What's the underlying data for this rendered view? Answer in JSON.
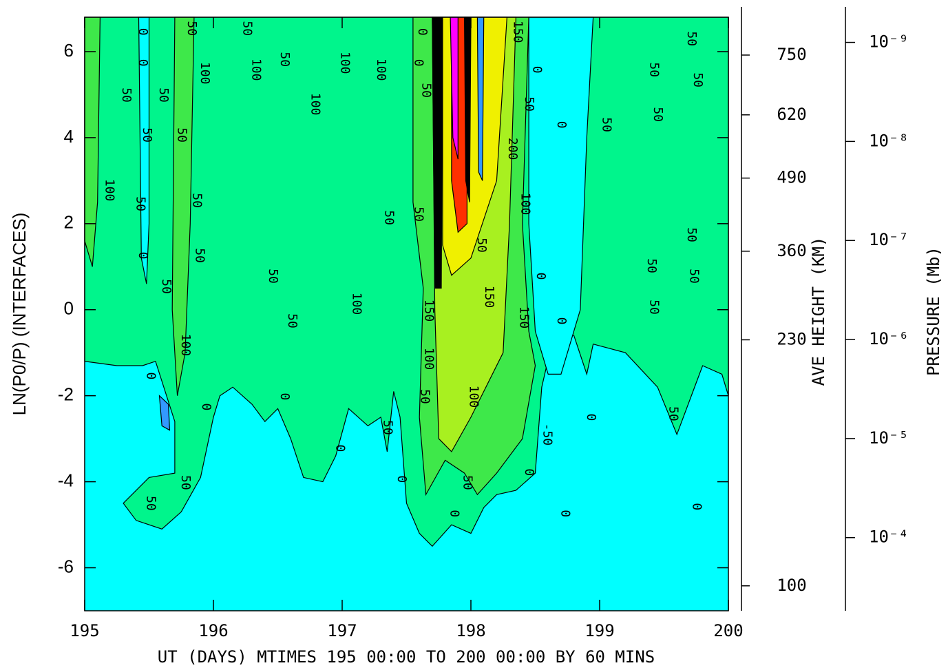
{
  "chart_data": {
    "type": "contour",
    "xlabel": "UT (DAYS) MTIMES 195 00:00 TO 200 00:00 BY   60 MINS",
    "ylabel": "LN(P0/P) (INTERFACES)",
    "xlim": [
      195,
      200
    ],
    "ylim": [
      -7,
      6.8
    ],
    "xticks": [
      195,
      196,
      197,
      198,
      199,
      200
    ],
    "yticks": [
      -6,
      -4,
      -2,
      0,
      2,
      4,
      6
    ],
    "height_axis": {
      "label": "AVE HEIGHT (KM)",
      "ticks": [
        100,
        230,
        360,
        490,
        620,
        750
      ],
      "tick_y": [
        -6.42,
        -0.7,
        1.36,
        3.06,
        4.53,
        5.92
      ]
    },
    "pressure_axis": {
      "label": "PRESSURE (Mb)",
      "log": true,
      "y2lim": [
        0.000548,
        5.57e-10
      ],
      "y2ticks": [
        {
          "value": 1e-09,
          "label": "10⁻⁹"
        },
        {
          "value": 1e-08,
          "label": "10⁻⁸"
        },
        {
          "value": 1e-07,
          "label": "10⁻⁷"
        },
        {
          "value": 1e-06,
          "label": "10⁻⁶"
        },
        {
          "value": 1e-05,
          "label": "10⁻⁵"
        },
        {
          "value": 0.0001,
          "label": "10⁻⁴"
        }
      ]
    },
    "regions": [
      {
        "level": 0,
        "color": "#00ffff",
        "points": [
          [
            195,
            6.8
          ],
          [
            200,
            6.8
          ],
          [
            200,
            -7
          ],
          [
            195,
            -7
          ]
        ]
      },
      {
        "level": 50,
        "color": "#00f58c",
        "points": [
          [
            195,
            6.8
          ],
          [
            200,
            6.8
          ],
          [
            200,
            -2
          ],
          [
            199.95,
            -1.5
          ],
          [
            199.8,
            -1.3
          ],
          [
            199.6,
            -2.9
          ],
          [
            199.45,
            -1.8
          ],
          [
            199.2,
            -1
          ],
          [
            198.95,
            -0.8
          ],
          [
            198.9,
            -1.5
          ],
          [
            198.8,
            -0.6
          ],
          [
            198.65,
            -0.5
          ],
          [
            198.55,
            -1.8
          ],
          [
            198.5,
            -3.8
          ],
          [
            198.35,
            -4.2
          ],
          [
            198.2,
            -4.3
          ],
          [
            198.1,
            -4.6
          ],
          [
            198.0,
            -5.2
          ],
          [
            197.85,
            -5.0
          ],
          [
            197.7,
            -5.5
          ],
          [
            197.6,
            -5.2
          ],
          [
            197.5,
            -4.5
          ],
          [
            197.45,
            -2.5
          ],
          [
            197.4,
            -1.9
          ],
          [
            197.35,
            -3.3
          ],
          [
            197.3,
            -2.5
          ],
          [
            197.2,
            -2.7
          ],
          [
            197.05,
            -2.3
          ],
          [
            196.95,
            -3.4
          ],
          [
            196.85,
            -4.0
          ],
          [
            196.7,
            -3.9
          ],
          [
            196.6,
            -3.0
          ],
          [
            196.5,
            -2.3
          ],
          [
            196.4,
            -2.6
          ],
          [
            196.3,
            -2.2
          ],
          [
            196.15,
            -1.8
          ],
          [
            196.05,
            -2.0
          ],
          [
            196.0,
            -2.5
          ],
          [
            195.9,
            -3.9
          ],
          [
            195.75,
            -4.7
          ],
          [
            195.6,
            -5.1
          ],
          [
            195.4,
            -4.9
          ],
          [
            195.3,
            -4.5
          ],
          [
            195.5,
            -3.9
          ],
          [
            195.7,
            -3.8
          ],
          [
            195.7,
            -2.6
          ],
          [
            195.55,
            -1.2
          ],
          [
            195.45,
            -1.3
          ],
          [
            195.25,
            -1.3
          ],
          [
            195,
            -1.2
          ]
        ]
      },
      {
        "level": 0,
        "color": "#00ffff",
        "points": [
          [
            195.42,
            6.8
          ],
          [
            195.5,
            6.8
          ],
          [
            195.5,
            2
          ],
          [
            195.48,
            0.6
          ],
          [
            195.44,
            1.2
          ],
          [
            195.43,
            4
          ]
        ]
      },
      {
        "level": 0,
        "color": "#00ffff",
        "points": [
          [
            198.45,
            6.8
          ],
          [
            198.95,
            6.8
          ],
          [
            198.9,
            4
          ],
          [
            198.85,
            0
          ],
          [
            198.7,
            -1.5
          ],
          [
            198.6,
            -1.5
          ],
          [
            198.5,
            -0.5
          ],
          [
            198.45,
            2
          ]
        ]
      },
      {
        "level": 100,
        "color": "#3ee84a",
        "points": [
          [
            195,
            6.8
          ],
          [
            195.12,
            6.8
          ],
          [
            195.1,
            2.5
          ],
          [
            195.06,
            1
          ],
          [
            195,
            1.6
          ]
        ]
      },
      {
        "level": 100,
        "color": "#3ee84a",
        "points": [
          [
            195.7,
            6.8
          ],
          [
            195.85,
            6.8
          ],
          [
            195.82,
            2
          ],
          [
            195.78,
            -1
          ],
          [
            195.72,
            -2
          ],
          [
            195.68,
            0
          ]
        ]
      },
      {
        "level": 100,
        "color": "#3ee84a",
        "points": [
          [
            197.55,
            6.8
          ],
          [
            198.45,
            6.8
          ],
          [
            198.4,
            2
          ],
          [
            198.45,
            -0.5
          ],
          [
            198.5,
            -1.3
          ],
          [
            198.4,
            -3
          ],
          [
            198.2,
            -3.8
          ],
          [
            198.05,
            -4.3
          ],
          [
            197.95,
            -3.8
          ],
          [
            197.8,
            -3.5
          ],
          [
            197.65,
            -4.3
          ],
          [
            197.6,
            -2.5
          ],
          [
            197.63,
            0.5
          ],
          [
            197.55,
            2.5
          ]
        ]
      },
      {
        "level": 150,
        "color": "#a8f020",
        "points": [
          [
            197.7,
            6.8
          ],
          [
            198.35,
            6.8
          ],
          [
            198.3,
            2
          ],
          [
            198.25,
            -1
          ],
          [
            198.0,
            -2.5
          ],
          [
            197.85,
            -3.3
          ],
          [
            197.75,
            -3.0
          ],
          [
            197.72,
            0
          ]
        ]
      },
      {
        "level": 200,
        "color": "#f0f000",
        "points": [
          [
            197.78,
            6.8
          ],
          [
            198.28,
            6.8
          ],
          [
            198.2,
            3
          ],
          [
            198.0,
            1.2
          ],
          [
            197.85,
            0.8
          ],
          [
            197.78,
            1.5
          ]
        ]
      },
      {
        "level": 300,
        "color": "#ff3000",
        "points": [
          [
            197.85,
            6.8
          ],
          [
            197.97,
            6.8
          ],
          [
            197.97,
            2
          ],
          [
            197.9,
            1.8
          ],
          [
            197.85,
            3
          ]
        ]
      },
      {
        "level": 400,
        "color": "#ff00ff",
        "points": [
          [
            197.84,
            6.8
          ],
          [
            197.9,
            6.8
          ],
          [
            197.9,
            3.5
          ],
          [
            197.86,
            4
          ]
        ]
      },
      {
        "level": 500,
        "color": "#000000",
        "points": [
          [
            197.7,
            6.8
          ],
          [
            197.78,
            6.8
          ],
          [
            197.77,
            0.5
          ],
          [
            197.72,
            0.5
          ]
        ]
      },
      {
        "level": 500,
        "color": "#000000",
        "points": [
          [
            197.95,
            6.8
          ],
          [
            198.0,
            6.8
          ],
          [
            197.99,
            2.5
          ],
          [
            197.96,
            3
          ]
        ]
      },
      {
        "level": -50,
        "color": "#3399ff",
        "points": [
          [
            198.05,
            6.8
          ],
          [
            198.1,
            6.8
          ],
          [
            198.09,
            3
          ],
          [
            198.06,
            3.2
          ]
        ]
      },
      {
        "level": -50,
        "color": "#3399ff",
        "points": [
          [
            195.58,
            -2
          ],
          [
            195.65,
            -2.2
          ],
          [
            195.66,
            -2.8
          ],
          [
            195.6,
            -2.7
          ]
        ]
      }
    ],
    "contour_labels": [
      {
        "value": 0,
        "x": 195.45,
        "y": 6.46
      },
      {
        "value": 0,
        "x": 195.45,
        "y": 5.74
      },
      {
        "value": 50,
        "x": 195.32,
        "y": 4.99
      },
      {
        "value": 50,
        "x": 195.61,
        "y": 4.99
      },
      {
        "value": 100,
        "x": 195.93,
        "y": 5.5
      },
      {
        "value": 50,
        "x": 195.83,
        "y": 6.54
      },
      {
        "value": 50,
        "x": 196.26,
        "y": 6.54
      },
      {
        "value": 100,
        "x": 196.33,
        "y": 5.58
      },
      {
        "value": 50,
        "x": 196.55,
        "y": 5.82
      },
      {
        "value": 100,
        "x": 197.02,
        "y": 5.74
      },
      {
        "value": 100,
        "x": 197.3,
        "y": 5.58
      },
      {
        "value": 100,
        "x": 196.79,
        "y": 4.78
      },
      {
        "value": 50,
        "x": 197.36,
        "y": 2.14
      },
      {
        "value": 50,
        "x": 197.59,
        "y": 2.22
      },
      {
        "value": 100,
        "x": 195.19,
        "y": 2.78
      },
      {
        "value": 50,
        "x": 195.43,
        "y": 2.46
      },
      {
        "value": 0,
        "x": 195.45,
        "y": 1.26
      },
      {
        "value": 50,
        "x": 195.63,
        "y": 0.54
      },
      {
        "value": 100,
        "x": 195.78,
        "y": -0.82
      },
      {
        "value": 0,
        "x": 195.51,
        "y": -1.54
      },
      {
        "value": 50,
        "x": 195.51,
        "y": -4.5
      },
      {
        "value": 50,
        "x": 195.78,
        "y": -4.02
      },
      {
        "value": 0,
        "x": 195.94,
        "y": -2.26
      },
      {
        "value": 50,
        "x": 196.46,
        "y": 0.78
      },
      {
        "value": 50,
        "x": 196.61,
        "y": -0.26
      },
      {
        "value": 0,
        "x": 196.55,
        "y": -2.02
      },
      {
        "value": 0,
        "x": 196.98,
        "y": -3.22
      },
      {
        "value": 100,
        "x": 197.11,
        "y": 0.14
      },
      {
        "value": 50,
        "x": 197.35,
        "y": -2.74
      },
      {
        "value": 150,
        "x": 197.67,
        "y": -0.02
      },
      {
        "value": 100,
        "x": 197.67,
        "y": -1.14
      },
      {
        "value": 50,
        "x": 197.64,
        "y": -2.02
      },
      {
        "value": 0,
        "x": 197.46,
        "y": -3.94
      },
      {
        "value": 0,
        "x": 197.87,
        "y": -4.74
      },
      {
        "value": 50,
        "x": 197.97,
        "y": -4.02
      },
      {
        "value": 100,
        "x": 198.02,
        "y": -2.02
      },
      {
        "value": 150,
        "x": 198.14,
        "y": 0.3
      },
      {
        "value": 50,
        "x": 198.08,
        "y": 1.5
      },
      {
        "value": 200,
        "x": 198.32,
        "y": 3.74
      },
      {
        "value": 150,
        "x": 198.36,
        "y": 6.46
      },
      {
        "value": 50,
        "x": 198.45,
        "y": 4.78
      },
      {
        "value": 0,
        "x": 198.51,
        "y": 5.58
      },
      {
        "value": 100,
        "x": 198.42,
        "y": 2.46
      },
      {
        "value": 150,
        "x": 198.41,
        "y": -0.18
      },
      {
        "value": 0,
        "x": 198.54,
        "y": 0.78
      },
      {
        "value": 0,
        "x": 198.7,
        "y": 4.3
      },
      {
        "value": 0,
        "x": 198.7,
        "y": -0.26
      },
      {
        "value": 0,
        "x": 198.45,
        "y": -3.78
      },
      {
        "value": 0,
        "x": 198.73,
        "y": -4.74
      },
      {
        "value": -50,
        "x": 198.59,
        "y": -2.9
      },
      {
        "value": 0,
        "x": 198.93,
        "y": -2.5
      },
      {
        "value": 50,
        "x": 199.05,
        "y": 4.3
      },
      {
        "value": 50,
        "x": 199.42,
        "y": 5.58
      },
      {
        "value": 50,
        "x": 199.45,
        "y": 4.54
      },
      {
        "value": 50,
        "x": 199.4,
        "y": 1.02
      },
      {
        "value": 50,
        "x": 199.42,
        "y": 0.06
      },
      {
        "value": 50,
        "x": 199.57,
        "y": -2.42
      },
      {
        "value": 50,
        "x": 199.71,
        "y": 6.3
      },
      {
        "value": 50,
        "x": 199.76,
        "y": 5.34
      },
      {
        "value": 50,
        "x": 199.71,
        "y": 1.74
      },
      {
        "value": 50,
        "x": 199.73,
        "y": 0.78
      },
      {
        "value": 0,
        "x": 199.75,
        "y": -4.58
      },
      {
        "value": 0,
        "x": 197.59,
        "y": 5.74
      },
      {
        "value": 50,
        "x": 197.65,
        "y": 5.1
      },
      {
        "value": 0,
        "x": 197.62,
        "y": 6.46
      },
      {
        "value": 50,
        "x": 195.75,
        "y": 4.06
      },
      {
        "value": 50,
        "x": 195.48,
        "y": 4.06
      },
      {
        "value": 50,
        "x": 195.87,
        "y": 2.54
      },
      {
        "value": 50,
        "x": 195.89,
        "y": 1.26
      }
    ]
  }
}
